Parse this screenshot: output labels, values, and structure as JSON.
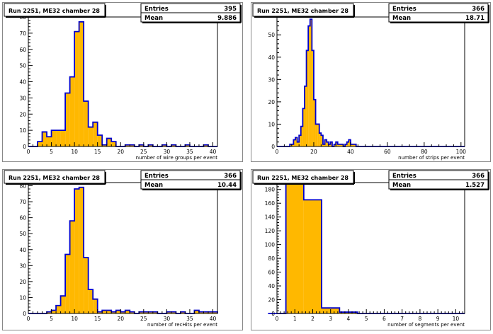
{
  "chart_data": [
    {
      "type": "bar",
      "title": "Run 2251, ME32 chamber 28",
      "stats": {
        "entries_label": "Entries",
        "entries": "395",
        "mean_label": "Mean",
        "mean": "9.886"
      },
      "xlabel": "number of wire groups per event",
      "xlim": [
        0,
        41
      ],
      "ylim": [
        0,
        80
      ],
      "xticks": [
        0,
        5,
        10,
        15,
        20,
        25,
        30,
        35,
        40
      ],
      "yticks": [
        0,
        10,
        20,
        30,
        40,
        50,
        60,
        70,
        80
      ],
      "bin_start": 0,
      "bin_width": 1,
      "values": [
        0,
        0,
        3,
        9,
        6,
        10,
        10,
        10,
        33,
        43,
        71,
        77,
        28,
        12,
        15,
        7,
        1,
        5,
        3,
        0,
        0,
        1,
        1,
        0,
        1,
        0,
        1,
        0,
        0,
        1,
        0,
        1,
        0,
        0,
        1,
        0,
        0,
        0,
        1,
        0,
        0
      ]
    },
    {
      "type": "bar",
      "title": "Run 2251, ME32 chamber 28",
      "stats": {
        "entries_label": "Entries",
        "entries": "366",
        "mean_label": "Mean",
        "mean": "18.71"
      },
      "xlabel": "number of strips per event",
      "xlim": [
        0,
        102
      ],
      "ylim": [
        0,
        58
      ],
      "xticks": [
        0,
        20,
        40,
        60,
        80,
        100
      ],
      "yticks": [
        0,
        10,
        20,
        30,
        40,
        50
      ],
      "bin_start": 0,
      "bin_width": 1,
      "values": [
        0,
        0,
        0,
        0,
        0,
        0,
        0,
        1,
        1,
        3,
        4,
        2,
        5,
        9,
        17,
        27,
        43,
        54,
        57,
        43,
        21,
        10,
        10,
        6,
        5,
        1,
        3,
        2,
        1,
        2,
        0,
        1,
        2,
        1,
        1,
        1,
        0,
        1,
        2,
        3,
        1,
        1,
        1,
        0,
        0,
        0,
        0,
        0,
        0,
        0,
        0,
        0,
        0,
        0,
        0,
        0,
        0,
        0,
        0,
        0,
        0,
        0,
        0,
        0,
        0,
        0,
        0,
        0,
        0,
        0,
        0,
        0,
        0,
        0,
        0,
        0,
        0,
        0,
        0,
        0,
        0,
        0,
        0,
        0,
        0,
        0,
        0,
        0,
        0,
        0,
        0,
        0,
        0,
        0,
        0,
        0,
        0,
        0,
        0,
        0,
        0,
        0
      ]
    },
    {
      "type": "bar",
      "title": "Run 2251, ME32 chamber 28",
      "stats": {
        "entries_label": "Entries",
        "entries": "366",
        "mean_label": "Mean",
        "mean": "10.44"
      },
      "xlabel": "number of recHits per event",
      "xlim": [
        0,
        41
      ],
      "ylim": [
        0,
        82
      ],
      "xticks": [
        0,
        5,
        10,
        15,
        20,
        25,
        30,
        35,
        40
      ],
      "yticks": [
        0,
        10,
        20,
        30,
        40,
        50,
        60,
        70,
        80
      ],
      "bin_start": 0,
      "bin_width": 1,
      "values": [
        0,
        0,
        0,
        0,
        1,
        2,
        5,
        11,
        37,
        58,
        78,
        79,
        35,
        15,
        9,
        1,
        2,
        2,
        1,
        2,
        1,
        2,
        1,
        0,
        1,
        1,
        1,
        1,
        0,
        0,
        1,
        1,
        0,
        1,
        0,
        0,
        2,
        1,
        1,
        1,
        1
      ]
    },
    {
      "type": "bar",
      "title": "Run 2251, ME32 chamber 28",
      "stats": {
        "entries_label": "Entries",
        "entries": "366",
        "mean_label": "Mean",
        "mean": "1.527"
      },
      "xlabel": "number of segments per event",
      "xlim": [
        0,
        10.5
      ],
      "ylim": [
        0,
        190
      ],
      "xticks": [
        0,
        1,
        2,
        3,
        4,
        5,
        6,
        7,
        8,
        9,
        10
      ],
      "yticks": [
        0,
        20,
        40,
        60,
        80,
        100,
        120,
        140,
        160,
        180
      ],
      "bin_start": -0.5,
      "bin_width": 1,
      "values": [
        0,
        188,
        165,
        8,
        2,
        0,
        0,
        0,
        0,
        0,
        0
      ]
    }
  ]
}
